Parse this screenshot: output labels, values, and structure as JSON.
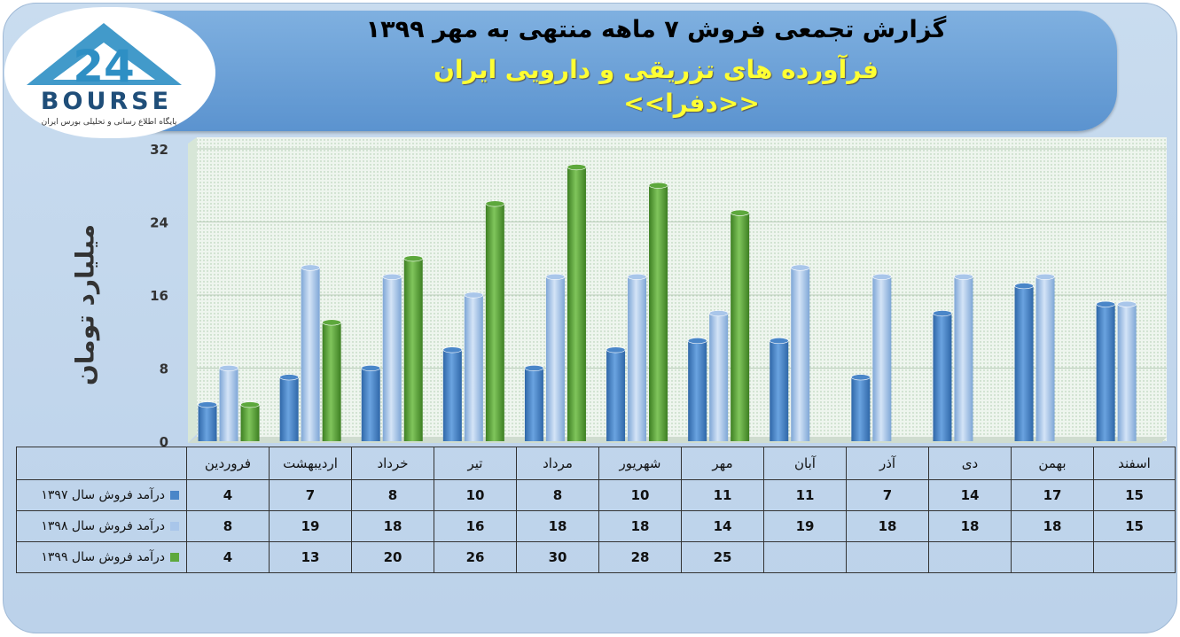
{
  "header": {
    "title": "گزارش تجمعی فروش ۷ ماهه منتهی به مهر ۱۳۹۹",
    "subtitle": "فرآورده های تزریقی و دارویی ایران",
    "symbol": "<<دفرا>>"
  },
  "logo": {
    "brand": "BOURSE",
    "number": "24",
    "tagline": "پایگاه اطلاع رسانی و تحلیلی بورس ایران"
  },
  "colors": {
    "s1397": "#4a86c8",
    "s1398": "#a9c6ea",
    "s1399": "#5da83c"
  },
  "chart_data": {
    "type": "bar",
    "ylabel": "میلیارد تومان",
    "ylim": [
      0,
      32
    ],
    "yticks": [
      0,
      8,
      16,
      24,
      32
    ],
    "categories": [
      "فروردین",
      "اردیبهشت",
      "خرداد",
      "تیر",
      "مرداد",
      "شهریور",
      "مهر",
      "آبان",
      "آذر",
      "دی",
      "بهمن",
      "اسفند"
    ],
    "series": [
      {
        "name": "درآمد فروش سال ۱۳۹۷",
        "values": [
          4,
          7,
          8,
          10,
          8,
          10,
          11,
          11,
          7,
          14,
          17,
          15
        ]
      },
      {
        "name": "درآمد فروش سال ۱۳۹۸",
        "values": [
          8,
          19,
          18,
          16,
          18,
          18,
          14,
          19,
          18,
          18,
          18,
          15
        ]
      },
      {
        "name": "درآمد فروش سال ۱۳۹۹",
        "values": [
          4,
          13,
          20,
          26,
          30,
          28,
          25,
          null,
          null,
          null,
          null,
          null
        ]
      }
    ],
    "grid": true,
    "legend": "data-table"
  }
}
